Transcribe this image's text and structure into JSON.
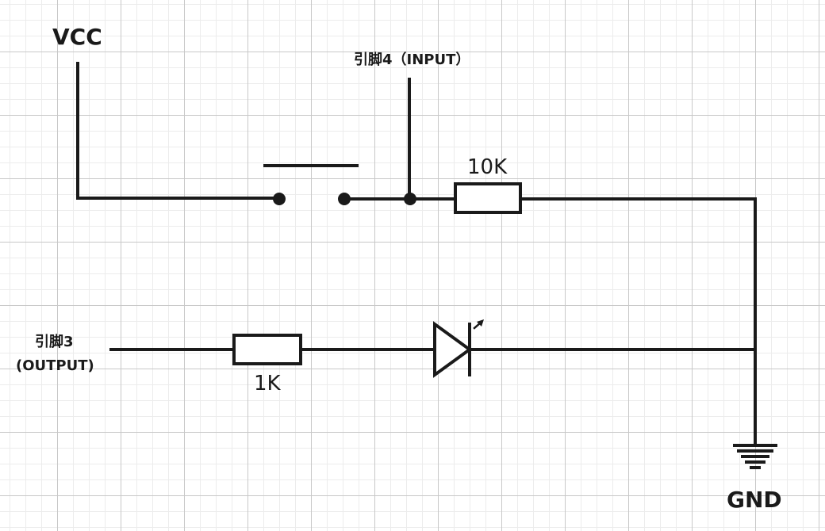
{
  "labels": {
    "vcc": "VCC",
    "pin4": "引脚4（INPUT）",
    "r10k": "10K",
    "pin3_line1": "引脚3",
    "pin3_line2": "(OUTPUT)",
    "r1k": "1K",
    "gnd": "GND"
  },
  "colors": {
    "wire": "#1a1a1a",
    "grid_major": "#c8c8c8",
    "grid_minor": "#ececec",
    "background": "#ffffff"
  }
}
